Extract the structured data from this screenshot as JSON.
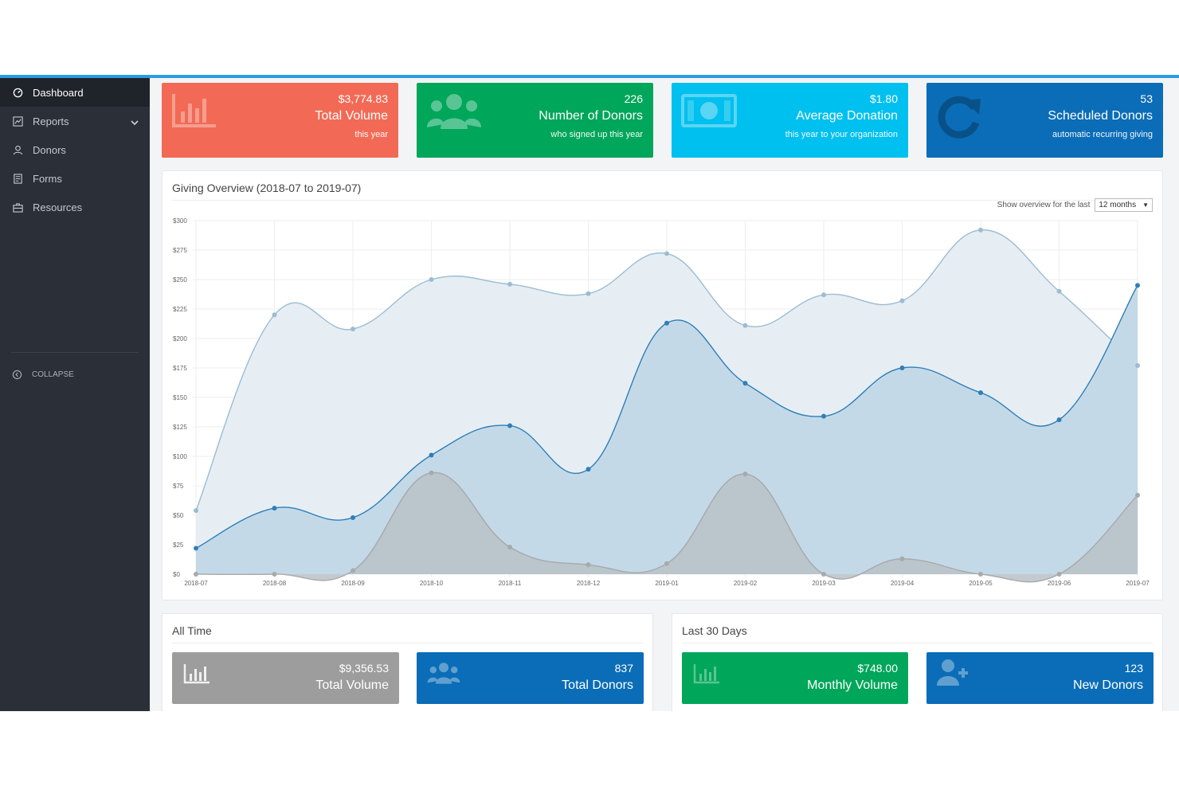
{
  "sidebar": {
    "items": [
      {
        "label": "Dashboard",
        "icon": "dashboard-icon",
        "active": true
      },
      {
        "label": "Reports",
        "icon": "reports-icon"
      },
      {
        "label": "Donors",
        "icon": "user-icon"
      },
      {
        "label": "Forms",
        "icon": "form-icon"
      },
      {
        "label": "Resources",
        "icon": "briefcase-icon"
      }
    ],
    "collapse_label": "COLLAPSE"
  },
  "stats": [
    {
      "value": "$3,774.83",
      "label": "Total Volume",
      "sub": "this year",
      "color": "#f26a55",
      "icon": "bar-chart-icon"
    },
    {
      "value": "226",
      "label": "Number of Donors",
      "sub": "who signed up this year",
      "color": "#00a65a",
      "icon": "users-icon"
    },
    {
      "value": "$1.80",
      "label": "Average Donation",
      "sub": "this year to your organization",
      "color": "#00c0ef",
      "icon": "money-icon"
    },
    {
      "value": "53",
      "label": "Scheduled Donors",
      "sub": "automatic recurring giving",
      "color": "#0b6db7",
      "icon": "refresh-icon"
    }
  ],
  "overview": {
    "title": "Giving Overview (2018-07 to 2019-07)",
    "range_label": "Show overview for the last",
    "range_value": "12 months"
  },
  "chart_data": {
    "type": "area",
    "x": [
      "2018-07",
      "2018-08",
      "2018-09",
      "2018-10",
      "2018-11",
      "2018-12",
      "2019-01",
      "2019-02",
      "2019-03",
      "2019-04",
      "2019-05",
      "2019-06",
      "2019-07"
    ],
    "y_ticks": [
      "$0",
      "$25",
      "$50",
      "$75",
      "$100",
      "$125",
      "$150",
      "$175",
      "$200",
      "$225",
      "$250",
      "$275",
      "$300"
    ],
    "ylim": [
      0,
      300
    ],
    "series": [
      {
        "values": [
          54,
          220,
          208,
          250,
          246,
          238,
          272,
          211,
          237,
          232,
          292,
          240,
          177
        ],
        "color": "#9bbcd3",
        "fill": "#e6eef4"
      },
      {
        "values": [
          22,
          56,
          48,
          101,
          126,
          89,
          213,
          162,
          134,
          175,
          154,
          131,
          245
        ],
        "color": "#2f7fb8",
        "fill": "#c4d9e7"
      },
      {
        "values": [
          0,
          0,
          3,
          86,
          23,
          8,
          9,
          85,
          0,
          13,
          0,
          0,
          67
        ],
        "color": "#a7a9ab",
        "fill": "#b9c1c7"
      }
    ],
    "grid": true
  },
  "all_time": {
    "title": "All Time",
    "cards": [
      {
        "value": "$9,356.53",
        "label": "Total Volume",
        "color": "#9d9d9d",
        "icon": "bar-chart-icon"
      },
      {
        "value": "837",
        "label": "Total Donors",
        "color": "#0b6db7",
        "icon": "users-icon"
      }
    ]
  },
  "last_30": {
    "title": "Last 30 Days",
    "cards": [
      {
        "value": "$748.00",
        "label": "Monthly Volume",
        "color": "#00a65a",
        "icon": "bar-chart-icon"
      },
      {
        "value": "123",
        "label": "New Donors",
        "color": "#0b6db7",
        "icon": "user-plus-icon"
      }
    ]
  }
}
